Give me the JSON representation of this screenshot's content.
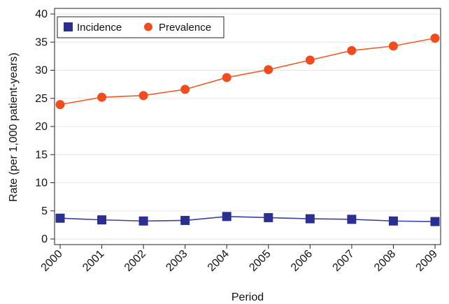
{
  "chart_data": {
    "type": "line",
    "title": "",
    "xlabel": "Period",
    "ylabel": "Rate (per 1,000 patient-years)",
    "categories": [
      "2000",
      "2001",
      "2002",
      "2003",
      "2004",
      "2005",
      "2006",
      "2007",
      "2008",
      "2009"
    ],
    "ylim": [
      0,
      40
    ],
    "yticks": [
      0,
      5,
      10,
      15,
      20,
      25,
      30,
      35,
      40
    ],
    "grid": true,
    "legend": "top-left",
    "series": [
      {
        "name": "Incidence",
        "marker": "square",
        "line_color": "#3a3ea8",
        "marker_color": "#2b2f8f",
        "values": [
          3.7,
          3.4,
          3.2,
          3.3,
          4.0,
          3.8,
          3.6,
          3.5,
          3.2,
          3.1
        ]
      },
      {
        "name": "Prevalence",
        "marker": "circle",
        "line_color": "#f15a24",
        "marker_color": "#ee4d1f",
        "values": [
          23.9,
          25.2,
          25.5,
          26.6,
          28.7,
          30.1,
          31.8,
          33.5,
          34.3,
          35.7
        ]
      }
    ]
  }
}
